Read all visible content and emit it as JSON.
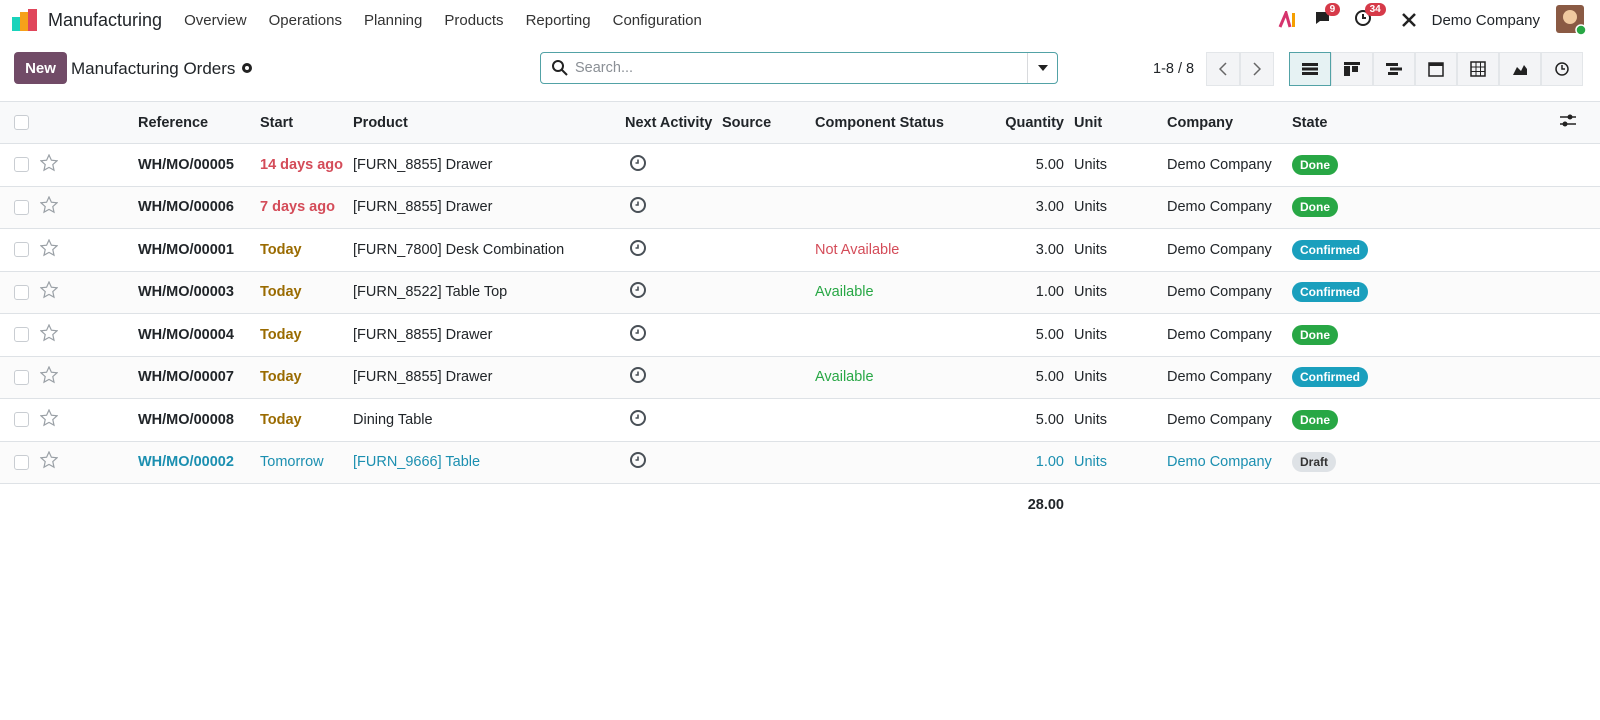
{
  "navbar": {
    "app": "Manufacturing",
    "menus": [
      "Overview",
      "Operations",
      "Planning",
      "Products",
      "Reporting",
      "Configuration"
    ],
    "messages_count": 9,
    "activities_count": 34,
    "company": "Demo Company"
  },
  "control": {
    "new": "New",
    "title": "Manufacturing Orders",
    "search_placeholder": "Search...",
    "pager": "1-8 / 8"
  },
  "table": {
    "columns": [
      "Reference",
      "Start",
      "Product",
      "Next Activity",
      "Source",
      "Component Status",
      "Quantity",
      "Unit",
      "Company",
      "State"
    ],
    "rows": [
      {
        "reference": "WH/MO/00005",
        "start": "14 days ago",
        "start_color": "#d44c59",
        "product": "[FURN_8855] Drawer",
        "quantity": "5.00",
        "unit": "Units",
        "company": "Demo Company",
        "state": "Done",
        "state_color": "#28a745"
      },
      {
        "reference": "WH/MO/00006",
        "start": "7 days ago",
        "start_color": "#d44c59",
        "product": "[FURN_8855] Drawer",
        "quantity": "3.00",
        "unit": "Units",
        "company": "Demo Company",
        "state": "Done",
        "state_color": "#28a745"
      },
      {
        "reference": "WH/MO/00001",
        "start": "Today",
        "start_color": "#9a6b01",
        "product": "[FURN_7800] Desk Combination",
        "component_status": "Not Available",
        "component_color": "#d44c59",
        "quantity": "3.00",
        "unit": "Units",
        "company": "Demo Company",
        "state": "Confirmed",
        "state_color": "#1a9fbd"
      },
      {
        "reference": "WH/MO/00003",
        "start": "Today",
        "start_color": "#9a6b01",
        "product": "[FURN_8522] Table Top",
        "component_status": "Available",
        "component_color": "#28a745",
        "quantity": "1.00",
        "unit": "Units",
        "company": "Demo Company",
        "state": "Confirmed",
        "state_color": "#1a9fbd"
      },
      {
        "reference": "WH/MO/00004",
        "start": "Today",
        "start_color": "#9a6b01",
        "product": "[FURN_8855] Drawer",
        "quantity": "5.00",
        "unit": "Units",
        "company": "Demo Company",
        "state": "Done",
        "state_color": "#28a745"
      },
      {
        "reference": "WH/MO/00007",
        "start": "Today",
        "start_color": "#9a6b01",
        "product": "[FURN_8855] Drawer",
        "component_status": "Available",
        "component_color": "#28a745",
        "quantity": "5.00",
        "unit": "Units",
        "company": "Demo Company",
        "state": "Confirmed",
        "state_color": "#1a9fbd"
      },
      {
        "reference": "WH/MO/00008",
        "start": "Today",
        "start_color": "#9a6b01",
        "product": "Dining Table",
        "quantity": "5.00",
        "unit": "Units",
        "company": "Demo Company",
        "state": "Done",
        "state_color": "#28a745"
      },
      {
        "reference": "WH/MO/00002",
        "start": "Tomorrow",
        "start_color": "#1b8fb0",
        "row_color": "#1b8fb0",
        "product": "[FURN_9666] Table",
        "quantity": "1.00",
        "unit": "Units",
        "company": "Demo Company",
        "state": "Draft",
        "state_color": "#dee2e6"
      }
    ],
    "total": "28.00"
  }
}
